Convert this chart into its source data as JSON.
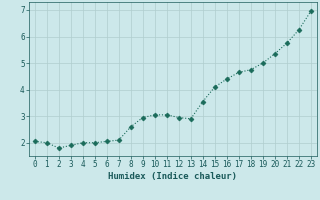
{
  "x": [
    0,
    1,
    2,
    3,
    4,
    5,
    6,
    7,
    8,
    9,
    10,
    11,
    12,
    13,
    14,
    15,
    16,
    17,
    18,
    19,
    20,
    21,
    22,
    23
  ],
  "y": [
    2.05,
    2.0,
    1.8,
    1.9,
    2.0,
    2.0,
    2.05,
    2.1,
    2.6,
    2.95,
    3.05,
    3.05,
    2.95,
    2.9,
    3.55,
    4.1,
    4.4,
    4.65,
    4.75,
    5.0,
    5.35,
    5.75,
    6.25,
    6.95
  ],
  "line_color": "#1a6b5a",
  "marker": "D",
  "marker_size": 2.5,
  "linewidth": 0.8,
  "linestyle": "dotted",
  "bg_color": "#cce8ea",
  "grid_color": "#b0cece",
  "axis_bg": "#cce8ea",
  "xlabel": "Humidex (Indice chaleur)",
  "xlabel_color": "#1a5a5a",
  "xlabel_fontsize": 6.5,
  "tick_color": "#1a5a5a",
  "tick_fontsize": 5.5,
  "xlim": [
    -0.5,
    23.5
  ],
  "ylim": [
    1.5,
    7.3
  ],
  "yticks": [
    2,
    3,
    4,
    5,
    6,
    7
  ],
  "xticks": [
    0,
    1,
    2,
    3,
    4,
    5,
    6,
    7,
    8,
    9,
    10,
    11,
    12,
    13,
    14,
    15,
    16,
    17,
    18,
    19,
    20,
    21,
    22,
    23
  ]
}
